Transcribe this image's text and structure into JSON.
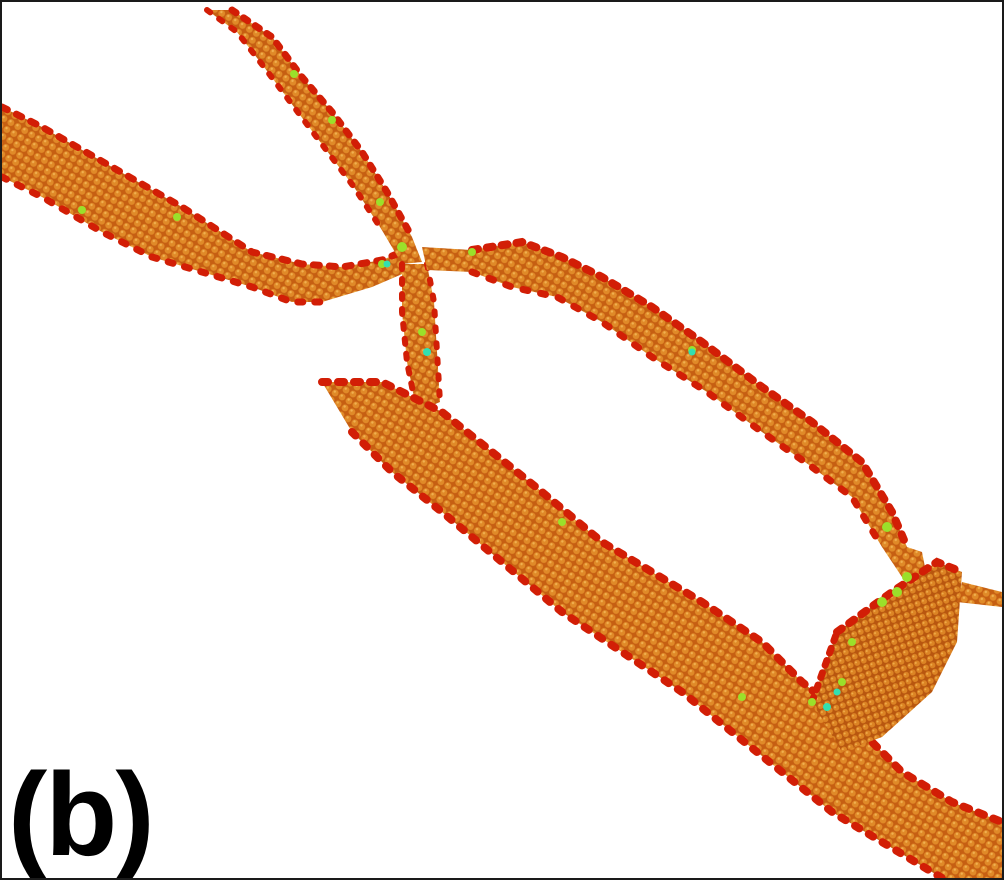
{
  "figure": {
    "panel_label": "(b)",
    "background": "#ffffff",
    "colors": {
      "atom_body": "#d2691e",
      "atom_highlight": "#e8902a",
      "surface_atom": "#d81e05",
      "low_coordination_atom": "#9be02a",
      "defect_atom": "#32e0b0"
    }
  }
}
